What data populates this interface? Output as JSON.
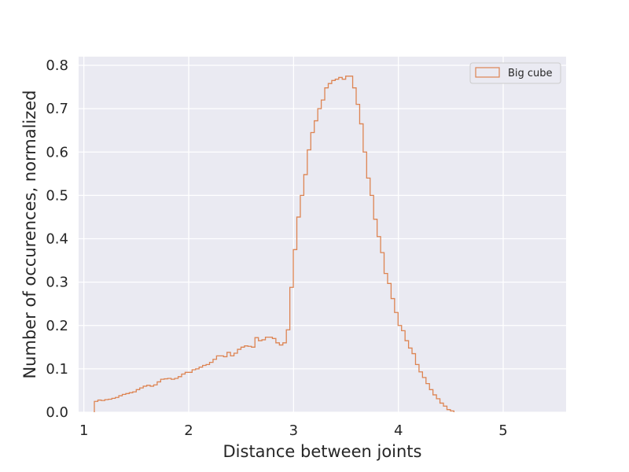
{
  "chart_data": {
    "type": "histogram-step",
    "xlabel": "Distance between joints",
    "ylabel": "Number of occurences, normalized",
    "xlim": [
      0.95,
      5.6
    ],
    "ylim": [
      0,
      0.82
    ],
    "xticks": [
      1,
      2,
      3,
      4,
      5
    ],
    "yticks": [
      0.0,
      0.1,
      0.2,
      0.3,
      0.4,
      0.5,
      0.6,
      0.7,
      0.8
    ],
    "xtick_labels": [
      "1",
      "2",
      "3",
      "4",
      "5"
    ],
    "ytick_labels": [
      "0.0",
      "0.1",
      "0.2",
      "0.3",
      "0.4",
      "0.5",
      "0.6",
      "0.7",
      "0.8"
    ],
    "grid": true,
    "legend_position": "top-right",
    "background_color": "#eaeaf2",
    "series": [
      {
        "name": "Big cube",
        "color": "#dd8452",
        "bin_start": 1.1,
        "bin_width": 0.0333,
        "values": [
          0.025,
          0.028,
          0.027,
          0.029,
          0.03,
          0.032,
          0.034,
          0.038,
          0.041,
          0.043,
          0.045,
          0.047,
          0.052,
          0.056,
          0.06,
          0.062,
          0.06,
          0.063,
          0.07,
          0.076,
          0.077,
          0.078,
          0.076,
          0.078,
          0.082,
          0.088,
          0.092,
          0.092,
          0.098,
          0.1,
          0.104,
          0.108,
          0.11,
          0.115,
          0.122,
          0.13,
          0.13,
          0.128,
          0.138,
          0.13,
          0.136,
          0.145,
          0.15,
          0.153,
          0.152,
          0.15,
          0.172,
          0.165,
          0.167,
          0.173,
          0.173,
          0.17,
          0.16,
          0.155,
          0.16,
          0.19,
          0.288,
          0.375,
          0.45,
          0.5,
          0.548,
          0.605,
          0.645,
          0.672,
          0.7,
          0.72,
          0.748,
          0.758,
          0.765,
          0.768,
          0.772,
          0.768,
          0.775,
          0.775,
          0.748,
          0.71,
          0.665,
          0.6,
          0.54,
          0.5,
          0.445,
          0.405,
          0.368,
          0.32,
          0.297,
          0.262,
          0.23,
          0.2,
          0.188,
          0.165,
          0.148,
          0.135,
          0.11,
          0.093,
          0.08,
          0.066,
          0.052,
          0.04,
          0.031,
          0.021,
          0.014,
          0.006,
          0.003
        ]
      }
    ]
  }
}
